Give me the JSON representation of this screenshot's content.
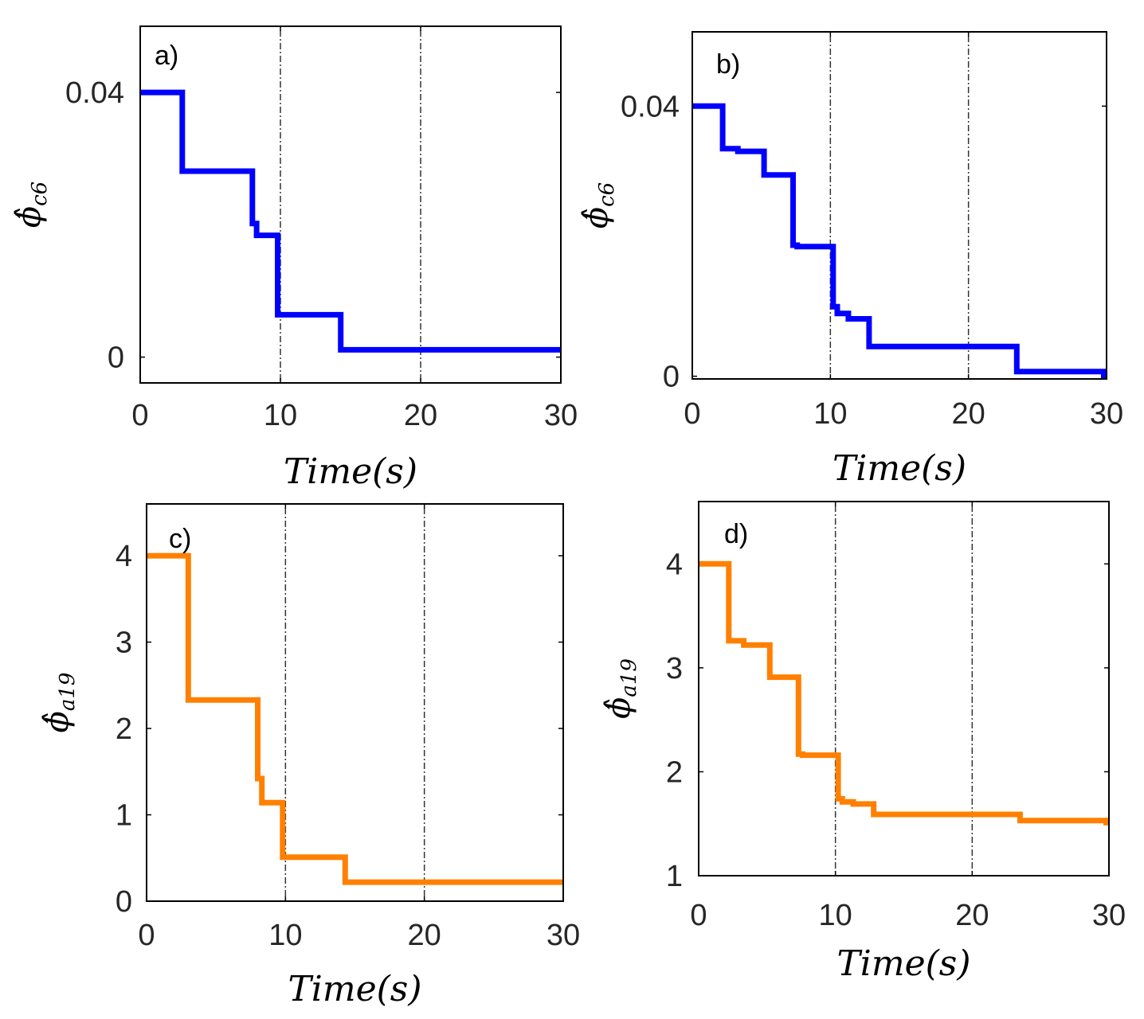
{
  "colors": {
    "blue_series": "#0000ff",
    "orange_series": "#ff8000"
  },
  "chart_data": [
    {
      "type": "line",
      "panel_label": "a)",
      "xlabel": "Time(s)",
      "ylabel": {
        "symbol": "ϕ̂",
        "subscript": "c6"
      },
      "xlim": [
        0,
        30
      ],
      "ylim": [
        -0.0039,
        0.05
      ],
      "xticks": [
        0,
        10,
        20,
        30
      ],
      "yticks": [
        0,
        0.04
      ],
      "ytick_labels": [
        "0",
        "0.04"
      ],
      "xgrid_lines": [
        10,
        20
      ],
      "color": "blue_series",
      "series": [
        {
          "name": "phi_c6",
          "x": [
            0,
            3.0,
            3.0,
            8.0,
            8.0,
            8.3,
            8.3,
            9.8,
            9.8,
            14.3,
            14.3,
            30
          ],
          "y": [
            0.04,
            0.04,
            0.0281,
            0.0281,
            0.0202,
            0.0202,
            0.0184,
            0.0184,
            0.0064,
            0.0064,
            0.0011,
            0.0011
          ]
        }
      ]
    },
    {
      "type": "line",
      "panel_label": "b)",
      "xlabel": "Time(s)",
      "ylabel": {
        "symbol": "ϕ̂",
        "subscript": "c6"
      },
      "xlim": [
        0,
        30
      ],
      "ylim": [
        -0.0004,
        0.051
      ],
      "xticks": [
        0,
        10,
        20,
        30
      ],
      "yticks": [
        0,
        0.04
      ],
      "ytick_labels": [
        "0",
        "0.04"
      ],
      "xgrid_lines": [
        10,
        20
      ],
      "color": "blue_series",
      "series": [
        {
          "name": "phi_c6",
          "x": [
            0,
            2.2,
            2.2,
            3.3,
            3.3,
            5.2,
            5.2,
            7.3,
            7.3,
            7.6,
            7.6,
            10.2,
            10.2,
            10.5,
            10.5,
            11.0,
            11.0,
            11.3,
            11.3,
            12.8,
            12.8,
            23.5,
            23.5,
            29.8,
            29.8,
            30
          ],
          "y": [
            0.04,
            0.04,
            0.0337,
            0.0337,
            0.0333,
            0.0333,
            0.0298,
            0.0298,
            0.0194,
            0.0194,
            0.0192,
            0.0192,
            0.0103,
            0.0103,
            0.0093,
            0.0093,
            0.0093,
            0.0093,
            0.0085,
            0.0085,
            0.0044,
            0.0044,
            0.0007,
            0.0007,
            0.0,
            0.0
          ]
        }
      ]
    },
    {
      "type": "line",
      "panel_label": "c)",
      "xlabel": "Time(s)",
      "ylabel": {
        "symbol": "ϕ̂",
        "subscript": "a19"
      },
      "xlim": [
        0,
        30
      ],
      "ylim": [
        0,
        4.6
      ],
      "xticks": [
        0,
        10,
        20,
        30
      ],
      "yticks": [
        0,
        1,
        2,
        3,
        4
      ],
      "ytick_labels": [
        "0",
        "1",
        "2",
        "3",
        "4"
      ],
      "xgrid_lines": [
        10,
        20
      ],
      "color": "orange_series",
      "series": [
        {
          "name": "phi_a19",
          "x": [
            0,
            3.0,
            3.0,
            8.0,
            8.0,
            8.3,
            8.3,
            9.8,
            9.8,
            14.3,
            14.3,
            30
          ],
          "y": [
            4.0,
            4.0,
            2.33,
            2.33,
            1.42,
            1.42,
            1.14,
            1.14,
            0.51,
            0.51,
            0.22,
            0.22
          ]
        }
      ]
    },
    {
      "type": "line",
      "panel_label": "d)",
      "xlabel": "Time(s)",
      "ylabel": {
        "symbol": "ϕ̂",
        "subscript": "a19"
      },
      "xlim": [
        0,
        30
      ],
      "ylim": [
        1,
        4.6
      ],
      "xticks": [
        0,
        10,
        20,
        30
      ],
      "yticks": [
        1,
        2,
        3,
        4
      ],
      "ytick_labels": [
        "1",
        "2",
        "3",
        "4"
      ],
      "xgrid_lines": [
        10,
        20
      ],
      "color": "orange_series",
      "series": [
        {
          "name": "phi_a19",
          "x": [
            0,
            2.2,
            2.2,
            3.3,
            3.3,
            5.2,
            5.2,
            7.3,
            7.3,
            7.6,
            7.6,
            10.2,
            10.2,
            10.5,
            10.5,
            11.0,
            11.0,
            11.3,
            11.3,
            12.8,
            12.8,
            23.5,
            23.5,
            29.8,
            29.8,
            30
          ],
          "y": [
            4.0,
            4.0,
            3.26,
            3.26,
            3.22,
            3.22,
            2.91,
            2.91,
            2.17,
            2.17,
            2.16,
            2.16,
            1.74,
            1.74,
            1.71,
            1.71,
            1.71,
            1.71,
            1.69,
            1.69,
            1.59,
            1.59,
            1.53,
            1.53,
            1.51,
            1.51
          ]
        }
      ]
    }
  ]
}
